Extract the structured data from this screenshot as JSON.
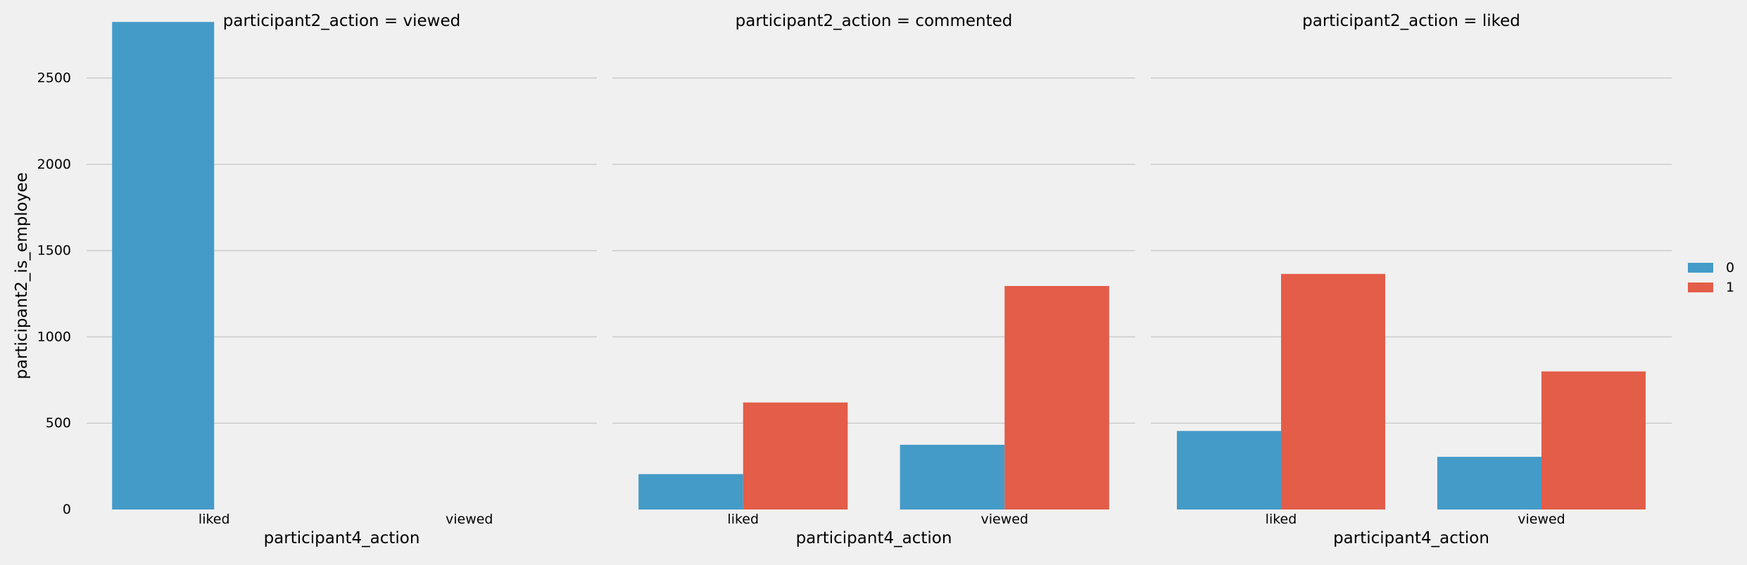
{
  "colors": {
    "background": "#f0f0f0",
    "grid": "#cbcbcb",
    "series_0": "#449bc8",
    "series_1": "#e35d48",
    "text": "#000000"
  },
  "chart_data": {
    "type": "bar",
    "facet_variable": "participant2_action",
    "facet_title_sep": " = ",
    "ylabel": "participant2_is_employee",
    "xlabel": "participant4_action",
    "ylim": [
      0,
      2830
    ],
    "yticks": [
      0,
      500,
      1000,
      1500,
      2000,
      2500
    ],
    "grid": "horizontal",
    "legend": {
      "placement": "right",
      "entries": [
        "0",
        "1"
      ]
    },
    "categories": [
      "liked",
      "viewed"
    ],
    "facets": [
      {
        "value": "viewed",
        "series": [
          {
            "name": "0",
            "values": [
              2825,
              0
            ]
          },
          {
            "name": "1",
            "values": [
              0,
              0
            ]
          }
        ]
      },
      {
        "value": "commented",
        "series": [
          {
            "name": "0",
            "values": [
              205,
              375
            ]
          },
          {
            "name": "1",
            "values": [
              620,
              1295
            ]
          }
        ]
      },
      {
        "value": "liked",
        "series": [
          {
            "name": "0",
            "values": [
              455,
              305
            ]
          },
          {
            "name": "1",
            "values": [
              1365,
              800
            ]
          }
        ]
      }
    ]
  }
}
